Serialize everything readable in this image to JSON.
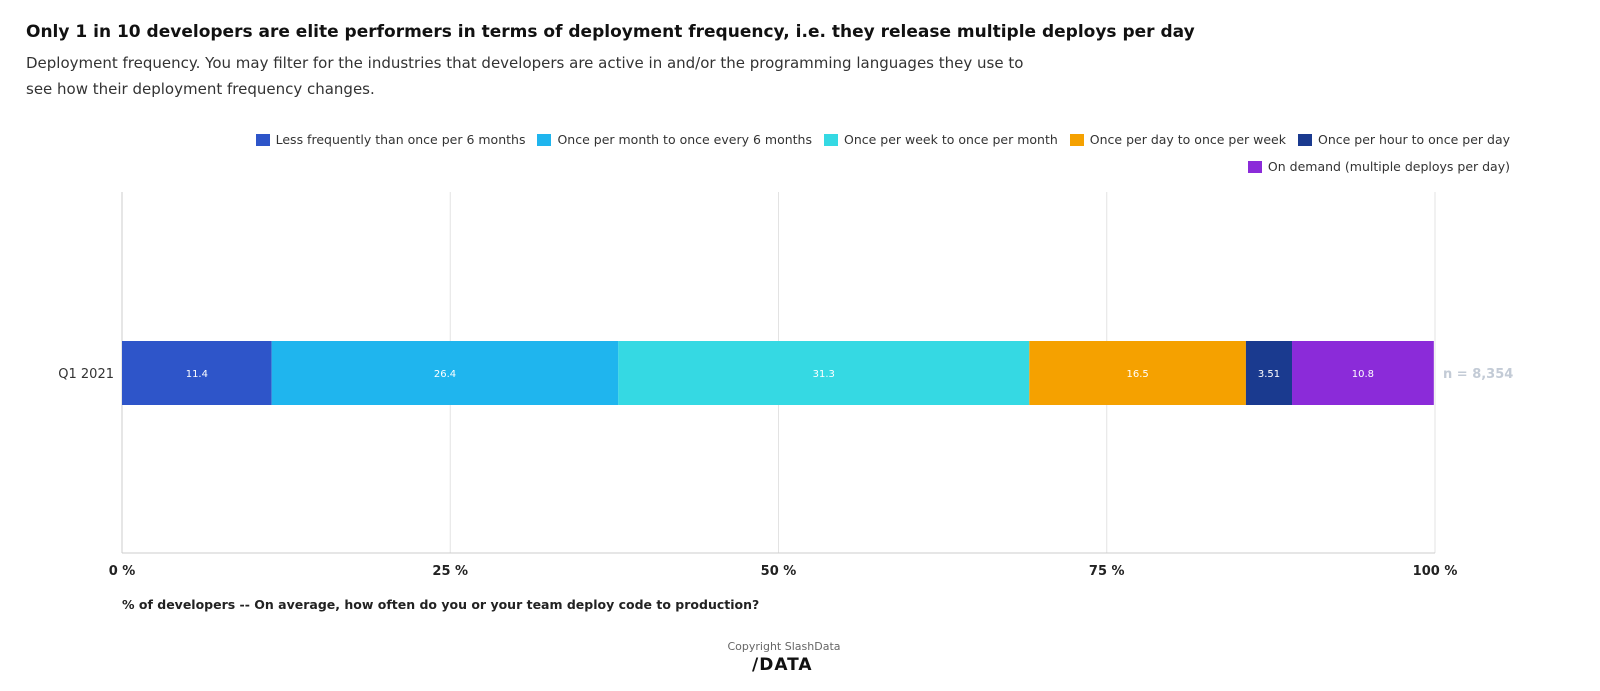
{
  "title": "Only 1 in 10 developers are elite performers in terms of deployment frequency, i.e. they release multiple deploys per day",
  "subtitle": "Deployment frequency. You may filter for the industries that developers are active in and/or the programming languages they use to see how their deployment frequency changes.",
  "copyright": "Copyright SlashData",
  "logo": "/DATA",
  "chart_data": {
    "type": "bar",
    "orientation": "horizontal",
    "stacked": true,
    "categories": [
      "Q1 2021"
    ],
    "series": [
      {
        "name": "Less frequently than once per 6 months",
        "values": [
          11.4
        ],
        "color": "#2E55C9"
      },
      {
        "name": "Once per month to once every 6 months",
        "values": [
          26.4
        ],
        "color": "#1FB5EE"
      },
      {
        "name": "Once per week to once per month",
        "values": [
          31.3
        ],
        "color": "#35D9E3"
      },
      {
        "name": "Once per day to once per week",
        "values": [
          16.5
        ],
        "color": "#F5A100"
      },
      {
        "name": "Once per hour to once per day",
        "values": [
          3.51
        ],
        "color": "#1A3A8F"
      },
      {
        "name": "On demand (multiple deploys per day)",
        "values": [
          10.8
        ],
        "color": "#8B2BD9"
      }
    ],
    "data_labels": [
      "11.4",
      "26.4",
      "31.3",
      "16.5",
      "3.51",
      "10.8"
    ],
    "annotation": "n = 8,354",
    "xlabel": "% of developers -- On average, how often do you or your team deploy code to production?",
    "xlim": [
      0,
      100
    ],
    "xticks": [
      "0 %",
      "25 %",
      "50 %",
      "75 %",
      "100 %"
    ],
    "grid": true,
    "legend": "top-right"
  }
}
